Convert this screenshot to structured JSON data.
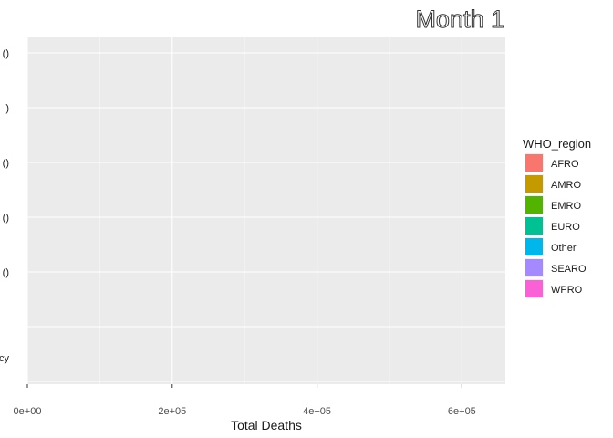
{
  "chart_data": {
    "type": "bar",
    "title": "Month 1",
    "xlabel": "Total Deaths",
    "ylabel": "",
    "xlim": [
      0,
      660000
    ],
    "x_ticks": [
      {
        "value": 0,
        "label": "0e+00"
      },
      {
        "value": 200000,
        "label": "2e+05"
      },
      {
        "value": 400000,
        "label": "4e+05"
      },
      {
        "value": 600000,
        "label": "6e+05"
      }
    ],
    "y_tick_labels": [
      "()",
      ")",
      "()",
      "()",
      "()",
      "cy"
    ],
    "categories": [],
    "values": [],
    "grid": true,
    "legend": {
      "title": "WHO_region",
      "placement": "right",
      "entries": [
        {
          "label": "AFRO",
          "color": "#F8766D"
        },
        {
          "label": "AMRO",
          "color": "#C49A00"
        },
        {
          "label": "EMRO",
          "color": "#53B400"
        },
        {
          "label": "EURO",
          "color": "#00C094"
        },
        {
          "label": "Other",
          "color": "#00B6EB"
        },
        {
          "label": "SEARO",
          "color": "#A58AFF"
        },
        {
          "label": "WPRO",
          "color": "#FB61D7"
        }
      ]
    }
  },
  "colors": {
    "panel_background": "#EBEBEB",
    "grid_major": "#FFFFFF",
    "grid_minor": "#F5F5F5"
  }
}
